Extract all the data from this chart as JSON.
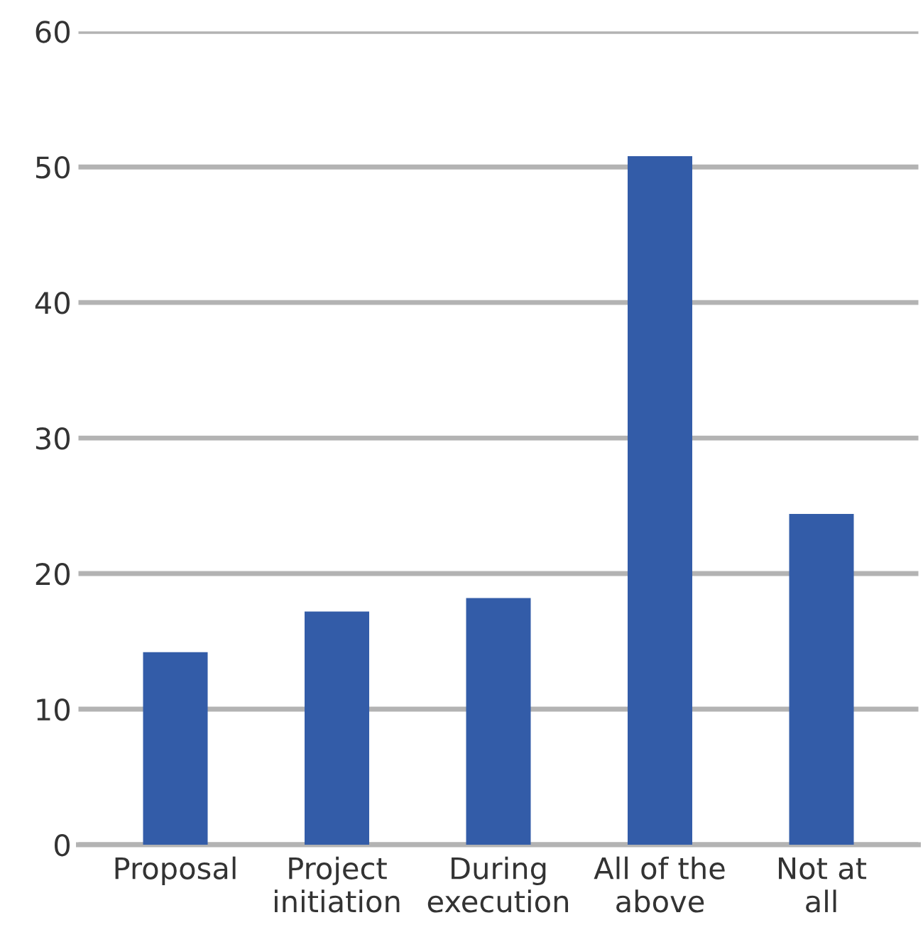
{
  "chart_data": {
    "type": "bar",
    "categories": [
      "Proposal",
      "Project\ninitiation",
      "During\nexecution",
      "All of the\nabove",
      "Not at\nall"
    ],
    "values": [
      14.2,
      17.2,
      18.2,
      50.8,
      24.4
    ],
    "color": "#335ca8",
    "ylim": [
      0,
      60
    ],
    "yticks": [
      0,
      10,
      20,
      30,
      40,
      50,
      60
    ],
    "grid": "y"
  }
}
